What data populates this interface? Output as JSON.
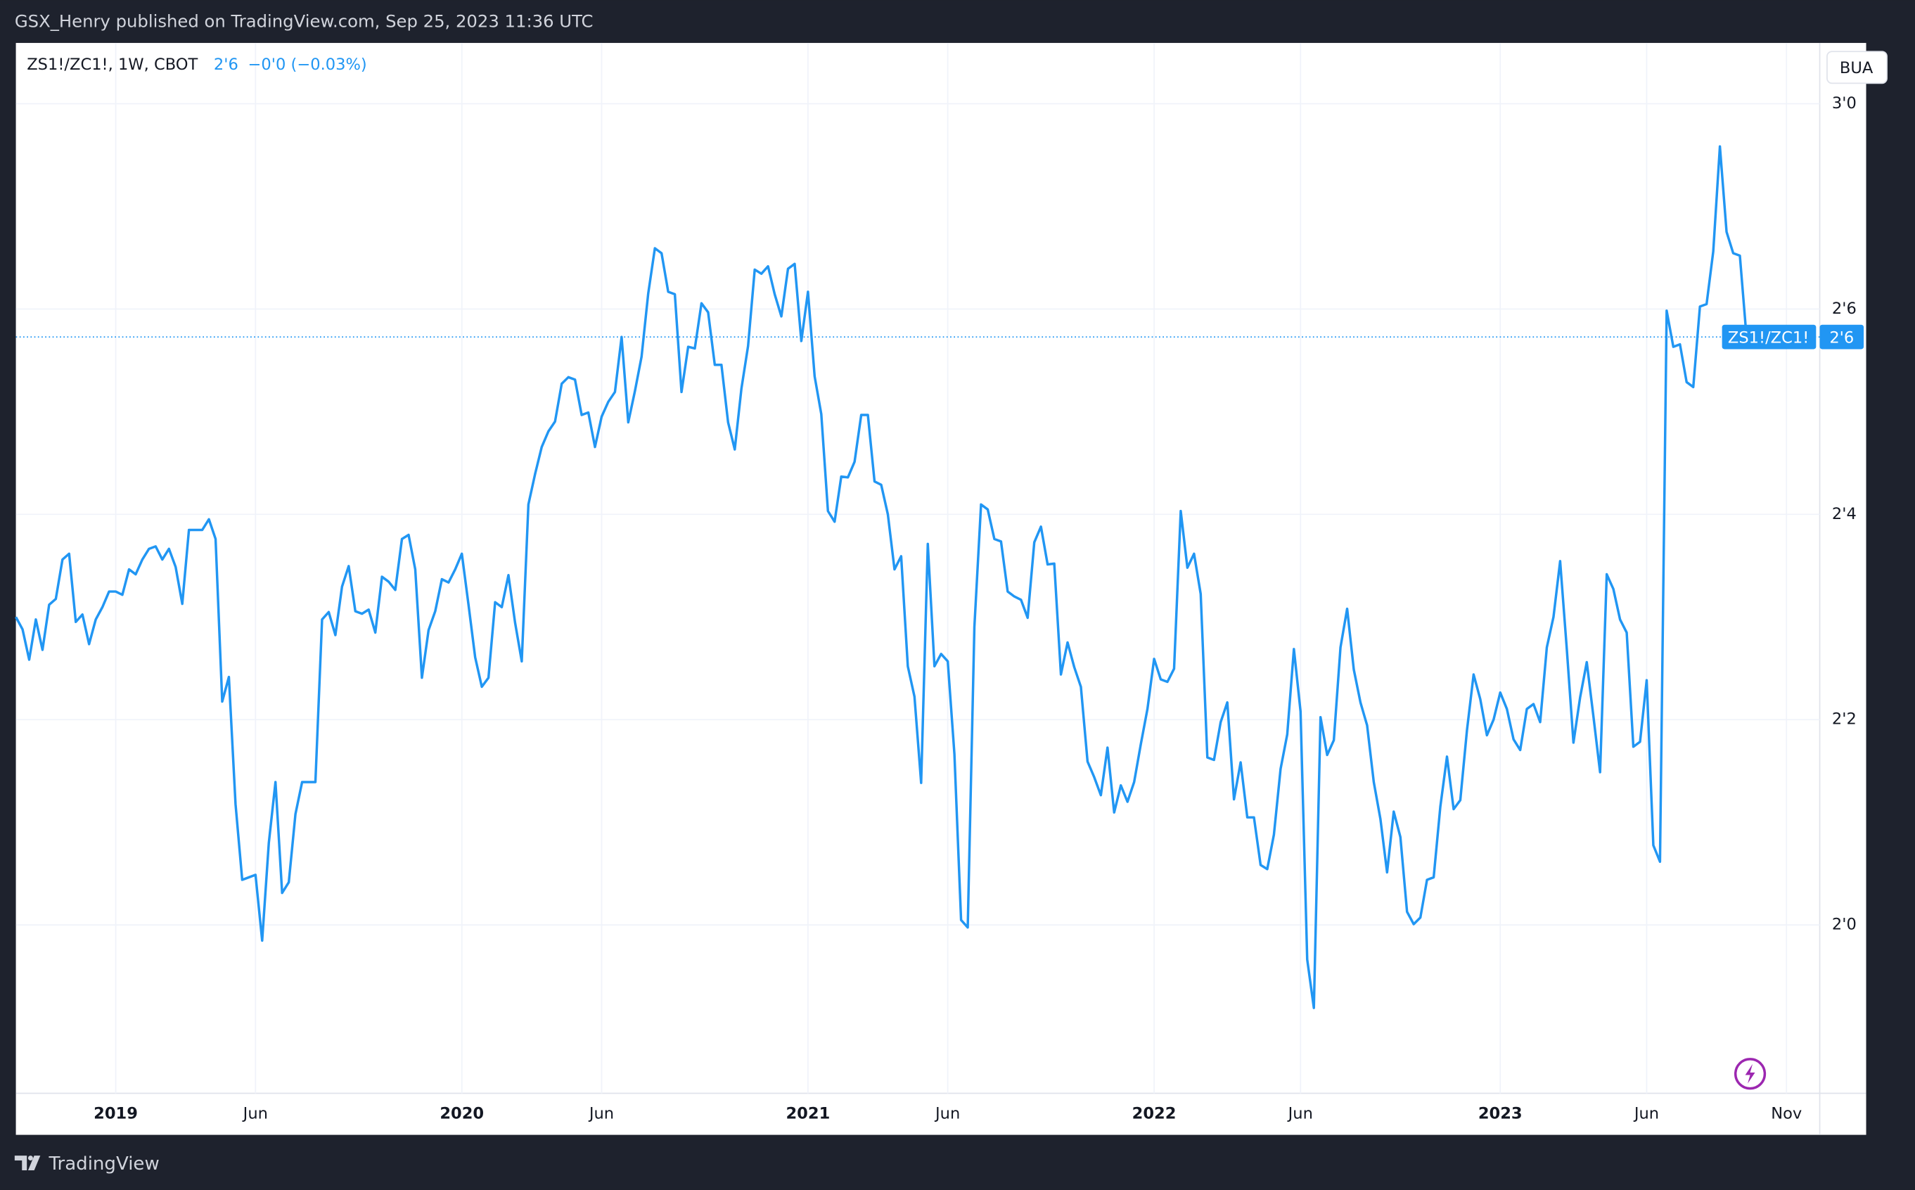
{
  "header": {
    "publisher": "GSX_Henry published on TradingView.com, Sep 25, 2023 11:36 UTC"
  },
  "chart_data": {
    "type": "line",
    "symbol": "ZS1!/ZC1!, 1W, CBOT",
    "last_price": "2'6",
    "change": "−0'0 (−0.03%)",
    "currency_button": "BUA",
    "price_tag": {
      "name": "ZS1!/ZC1!",
      "label": "2'6"
    },
    "color": "#2196f3",
    "grid": true,
    "categories": [
      null,
      null,
      null,
      null,
      null,
      null,
      null,
      null,
      null,
      null,
      null,
      null,
      null,
      null,
      null,
      "2019",
      null,
      null,
      null,
      null,
      null,
      null,
      null,
      null,
      null,
      null,
      null,
      null,
      null,
      null,
      null,
      null,
      null,
      null,
      null,
      null,
      "Jun",
      null,
      null,
      null,
      null,
      null,
      null,
      null,
      null,
      null,
      null,
      null,
      null,
      null,
      null,
      null,
      null,
      null,
      null,
      null,
      null,
      null,
      null,
      null,
      null,
      null,
      null,
      null,
      null,
      null,
      null,
      "2020",
      null,
      null,
      null,
      null,
      null,
      null,
      null,
      null,
      null,
      null,
      null,
      null,
      null,
      null,
      null,
      null,
      null,
      null,
      null,
      null,
      "Jun",
      null,
      null,
      null,
      null,
      null,
      null,
      null,
      null,
      null,
      null,
      null,
      null,
      null,
      null,
      null,
      null,
      null,
      null,
      null,
      null,
      null,
      null,
      null,
      null,
      null,
      null,
      null,
      null,
      null,
      null,
      "2021",
      null,
      null,
      null,
      null,
      null,
      null,
      null,
      null,
      null,
      null,
      null,
      null,
      null,
      null,
      null,
      null,
      null,
      null,
      null,
      null,
      "Jun",
      null,
      null,
      null,
      null,
      null,
      null,
      null,
      null,
      null,
      null,
      null,
      null,
      null,
      null,
      null,
      null,
      null,
      null,
      null,
      null,
      null,
      null,
      null,
      null,
      null,
      null,
      null,
      null,
      null,
      null,
      "2022",
      null,
      null,
      null,
      null,
      null,
      null,
      null,
      null,
      null,
      null,
      null,
      null,
      null,
      null,
      null,
      null,
      null,
      null,
      null,
      null,
      null,
      "Jun",
      null,
      null,
      null,
      null,
      null,
      null,
      null,
      null,
      null,
      null,
      null,
      null,
      null,
      null,
      null,
      null,
      null,
      null,
      null,
      null,
      null,
      null,
      null,
      null,
      null,
      null,
      null,
      null,
      null,
      "2023",
      null,
      null,
      null,
      null,
      null,
      null,
      null,
      null,
      null,
      null,
      null,
      null,
      null,
      null,
      null,
      null,
      null,
      null,
      null,
      null,
      null,
      "Jun",
      null,
      null,
      null,
      null,
      null,
      null,
      null,
      null,
      null,
      null,
      null,
      null,
      null,
      null,
      null,
      null,
      null,
      null,
      null,
      null,
      "Nov",
      null,
      null,
      null,
      null,
      null
    ],
    "series": [
      {
        "name": "ZS1!/ZC1!",
        "values": [
          2.375,
          2.36,
          2.323,
          2.372,
          2.335,
          2.39,
          2.397,
          2.445,
          2.452,
          2.369,
          2.378,
          2.342,
          2.372,
          2.387,
          2.406,
          2.406,
          2.402,
          2.433,
          2.427,
          2.445,
          2.458,
          2.461,
          2.445,
          2.458,
          2.436,
          2.391,
          2.481,
          2.481,
          2.481,
          2.494,
          2.47,
          2.272,
          2.302,
          2.147,
          2.055,
          2.058,
          2.061,
          1.981,
          2.1,
          2.174,
          2.039,
          2.052,
          2.135,
          2.174,
          2.174,
          2.174,
          2.372,
          2.381,
          2.353,
          2.412,
          2.437,
          2.382,
          2.379,
          2.384,
          2.356,
          2.424,
          2.418,
          2.408,
          2.47,
          2.475,
          2.433,
          2.301,
          2.359,
          2.382,
          2.421,
          2.417,
          2.433,
          2.452,
          2.39,
          2.326,
          2.29,
          2.301,
          2.393,
          2.387,
          2.426,
          2.368,
          2.321,
          2.512,
          2.549,
          2.582,
          2.601,
          2.613,
          2.659,
          2.667,
          2.664,
          2.621,
          2.624,
          2.582,
          2.619,
          2.637,
          2.649,
          2.716,
          2.612,
          2.65,
          2.692,
          2.769,
          2.824,
          2.818,
          2.771,
          2.768,
          2.649,
          2.704,
          2.702,
          2.757,
          2.746,
          2.682,
          2.682,
          2.612,
          2.579,
          2.653,
          2.705,
          2.798,
          2.793,
          2.802,
          2.768,
          2.741,
          2.799,
          2.805,
          2.711,
          2.771,
          2.668,
          2.622,
          2.504,
          2.491,
          2.546,
          2.545,
          2.564,
          2.621,
          2.621,
          2.54,
          2.536,
          2.5,
          2.433,
          2.449,
          2.315,
          2.278,
          2.173,
          2.464,
          2.315,
          2.33,
          2.321,
          2.208,
          2.006,
          1.997,
          2.363,
          2.512,
          2.506,
          2.47,
          2.467,
          2.406,
          2.4,
          2.396,
          2.374,
          2.466,
          2.485,
          2.439,
          2.44,
          2.305,
          2.344,
          2.314,
          2.29,
          2.199,
          2.18,
          2.158,
          2.216,
          2.137,
          2.17,
          2.15,
          2.174,
          2.22,
          2.263,
          2.324,
          2.299,
          2.296,
          2.312,
          2.504,
          2.435,
          2.452,
          2.403,
          2.204,
          2.201,
          2.247,
          2.271,
          2.153,
          2.198,
          2.131,
          2.131,
          2.073,
          2.068,
          2.11,
          2.19,
          2.232,
          2.336,
          2.26,
          1.958,
          1.899,
          2.253,
          2.207,
          2.225,
          2.338,
          2.385,
          2.311,
          2.271,
          2.243,
          2.174,
          2.129,
          2.064,
          2.138,
          2.107,
          2.016,
          2.001,
          2.009,
          2.055,
          2.058,
          2.144,
          2.205,
          2.141,
          2.152,
          2.237,
          2.305,
          2.275,
          2.231,
          2.25,
          2.283,
          2.263,
          2.226,
          2.213,
          2.263,
          2.269,
          2.247,
          2.338,
          2.375,
          2.443,
          2.336,
          2.222,
          2.277,
          2.32,
          2.254,
          2.186,
          2.427,
          2.409,
          2.372,
          2.356,
          2.217,
          2.223,
          2.298,
          2.097,
          2.077,
          2.748,
          2.704,
          2.707,
          2.661,
          2.655,
          2.753,
          2.756,
          2.82,
          2.948,
          2.844,
          2.818,
          2.815,
          2.716,
          null,
          null,
          null,
          null,
          null,
          null,
          null,
          null,
          null,
          null,
          null
        ]
      }
    ],
    "ylim": [
      1.795,
      3.074
    ],
    "yticks": [
      {
        "value": 2,
        "label": "2'0"
      },
      {
        "value": 2.25,
        "label": "2'2"
      },
      {
        "value": 2.5,
        "label": "2'4"
      },
      {
        "value": 2.75,
        "label": "2'6"
      },
      {
        "value": 3,
        "label": "3'0"
      }
    ]
  },
  "footer": {
    "brand": "TradingView"
  }
}
